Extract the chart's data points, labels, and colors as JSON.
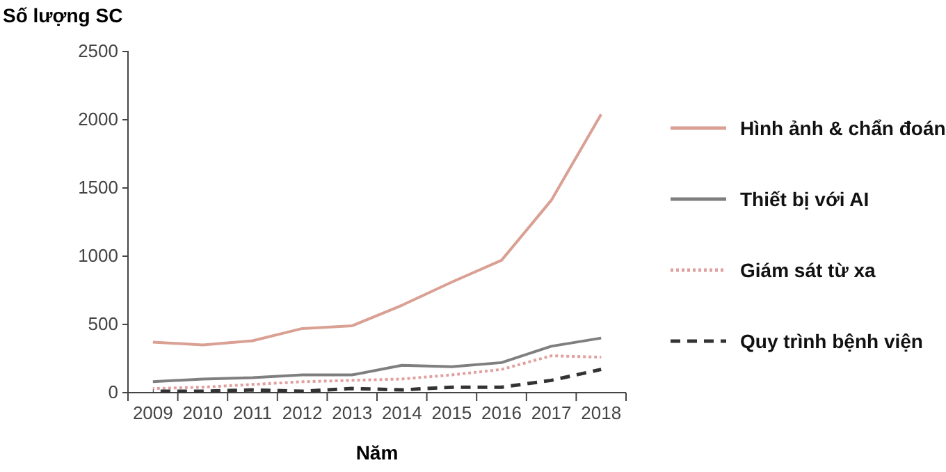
{
  "chart_data": {
    "type": "line",
    "ylabel": "Số lượng SC",
    "xlabel": "Năm",
    "categories": [
      "2009",
      "2010",
      "2011",
      "2012",
      "2013",
      "2014",
      "2015",
      "2016",
      "2017",
      "2018"
    ],
    "series": [
      {
        "name": "Hình ảnh & chẩn đoán",
        "color": "#d9a093",
        "line_style": "solid",
        "values": [
          370,
          350,
          380,
          470,
          490,
          640,
          810,
          970,
          1410,
          2040
        ]
      },
      {
        "name": "Thiết bị với AI",
        "color": "#7f7f7f",
        "line_style": "solid",
        "values": [
          80,
          100,
          110,
          130,
          130,
          200,
          190,
          220,
          340,
          400
        ]
      },
      {
        "name": "Giám sát từ xa",
        "color": "#e0a0a0",
        "line_style": "dotted",
        "values": [
          30,
          40,
          60,
          80,
          90,
          100,
          130,
          170,
          270,
          260
        ]
      },
      {
        "name": "Quy trình bệnh viện",
        "color": "#333333",
        "line_style": "dashed",
        "values": [
          10,
          10,
          20,
          10,
          30,
          20,
          40,
          40,
          90,
          170
        ]
      }
    ],
    "ylim": [
      0,
      2500
    ],
    "yticks": [
      0,
      500,
      1000,
      1500,
      2000,
      2500
    ],
    "grid": false,
    "legend": "right",
    "marker": "none"
  }
}
